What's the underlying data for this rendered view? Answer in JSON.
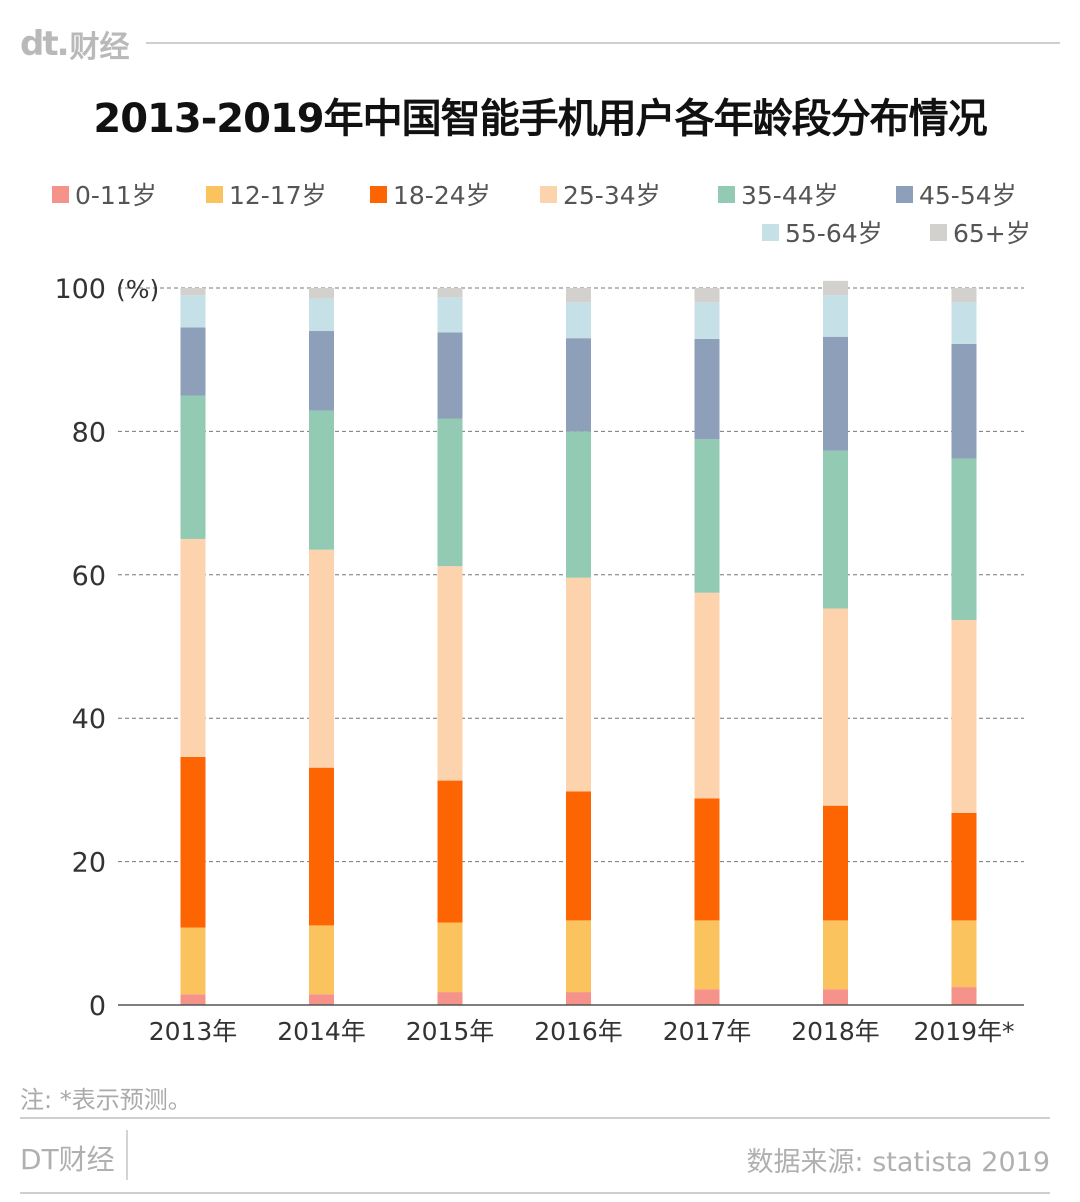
{
  "header": {
    "logo_mark": "dt.",
    "logo_text": "财经"
  },
  "chart_data": {
    "type": "bar",
    "stacked": true,
    "title": "2013-2019年中国智能手机用户各年龄段分布情况",
    "ylabel": "(%)",
    "ylim": [
      0,
      100
    ],
    "yticks": [
      0,
      20,
      40,
      60,
      80,
      100
    ],
    "ytick_labels": [
      "0",
      "20",
      "40",
      "60",
      "80",
      "100"
    ],
    "grid": "horizontal-dashed",
    "legend_position": "top",
    "categories": [
      "2013年",
      "2014年",
      "2015年",
      "2016年",
      "2017年",
      "2018年",
      "2019年*"
    ],
    "series": [
      {
        "name": "0-11岁",
        "color": "#f5928a",
        "values": [
          1.5,
          1.5,
          1.8,
          1.8,
          2.2,
          2.2,
          2.5
        ]
      },
      {
        "name": "12-17岁",
        "color": "#fbc35e",
        "values": [
          9.3,
          9.6,
          9.7,
          10.0,
          9.6,
          9.6,
          9.3
        ]
      },
      {
        "name": "18-24岁",
        "color": "#fd6503",
        "values": [
          23.8,
          22.0,
          19.8,
          18.0,
          17.0,
          16.0,
          15.0
        ]
      },
      {
        "name": "25-34岁",
        "color": "#fdd3ae",
        "values": [
          30.4,
          30.4,
          29.9,
          29.8,
          28.7,
          27.5,
          26.9
        ]
      },
      {
        "name": "35-44岁",
        "color": "#92cab3",
        "values": [
          20.0,
          19.4,
          20.6,
          20.4,
          21.4,
          22.0,
          22.5
        ]
      },
      {
        "name": "45-54岁",
        "color": "#8e9fb9",
        "values": [
          9.5,
          11.1,
          12.0,
          13.0,
          14.0,
          15.9,
          16.0
        ]
      },
      {
        "name": "55-64岁",
        "color": "#c6e0e7",
        "values": [
          4.5,
          4.5,
          4.9,
          5.0,
          5.1,
          5.8,
          5.8
        ]
      },
      {
        "name": "65+岁",
        "color": "#d3d1ce",
        "values": [
          1.0,
          1.5,
          1.3,
          2.0,
          2.0,
          2.0,
          2.0
        ]
      }
    ]
  },
  "note": "注: *表示预测。",
  "footer": {
    "brand": "DT财经",
    "source": "数据来源: statista 2019"
  }
}
